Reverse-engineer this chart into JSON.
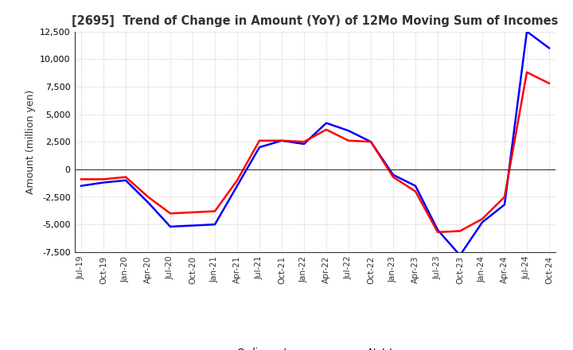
{
  "title": "[2695]  Trend of Change in Amount (YoY) of 12Mo Moving Sum of Incomes",
  "ylabel": "Amount (million yen)",
  "ylim": [
    -7500,
    12500
  ],
  "yticks": [
    -7500,
    -5000,
    -2500,
    0,
    2500,
    5000,
    7500,
    10000,
    12500
  ],
  "ordinary_income_color": "#0000FF",
  "net_income_color": "#FF0000",
  "background_color": "#FFFFFF",
  "grid_color": "#AAAAAA",
  "x_labels": [
    "Jul-19",
    "Oct-19",
    "Jan-20",
    "Apr-20",
    "Jul-20",
    "Oct-20",
    "Jan-21",
    "Apr-21",
    "Jul-21",
    "Oct-21",
    "Jan-22",
    "Apr-22",
    "Jul-22",
    "Oct-22",
    "Jan-23",
    "Apr-23",
    "Jul-23",
    "Oct-23",
    "Jan-24",
    "Apr-24",
    "Jul-24",
    "Oct-24"
  ],
  "ordinary_income": [
    -1500,
    -1200,
    -1000,
    -3000,
    -5200,
    -5100,
    -5000,
    -1500,
    2000,
    2600,
    2300,
    4200,
    3500,
    2500,
    -500,
    -1500,
    -5500,
    -7800,
    -4800,
    -3200,
    12500,
    11000
  ],
  "net_income": [
    -900,
    -900,
    -700,
    -2500,
    -4000,
    -3900,
    -3800,
    -1000,
    2600,
    2600,
    2500,
    3600,
    2600,
    2500,
    -700,
    -2000,
    -5700,
    -5600,
    -4500,
    -2500,
    8800,
    7800
  ]
}
